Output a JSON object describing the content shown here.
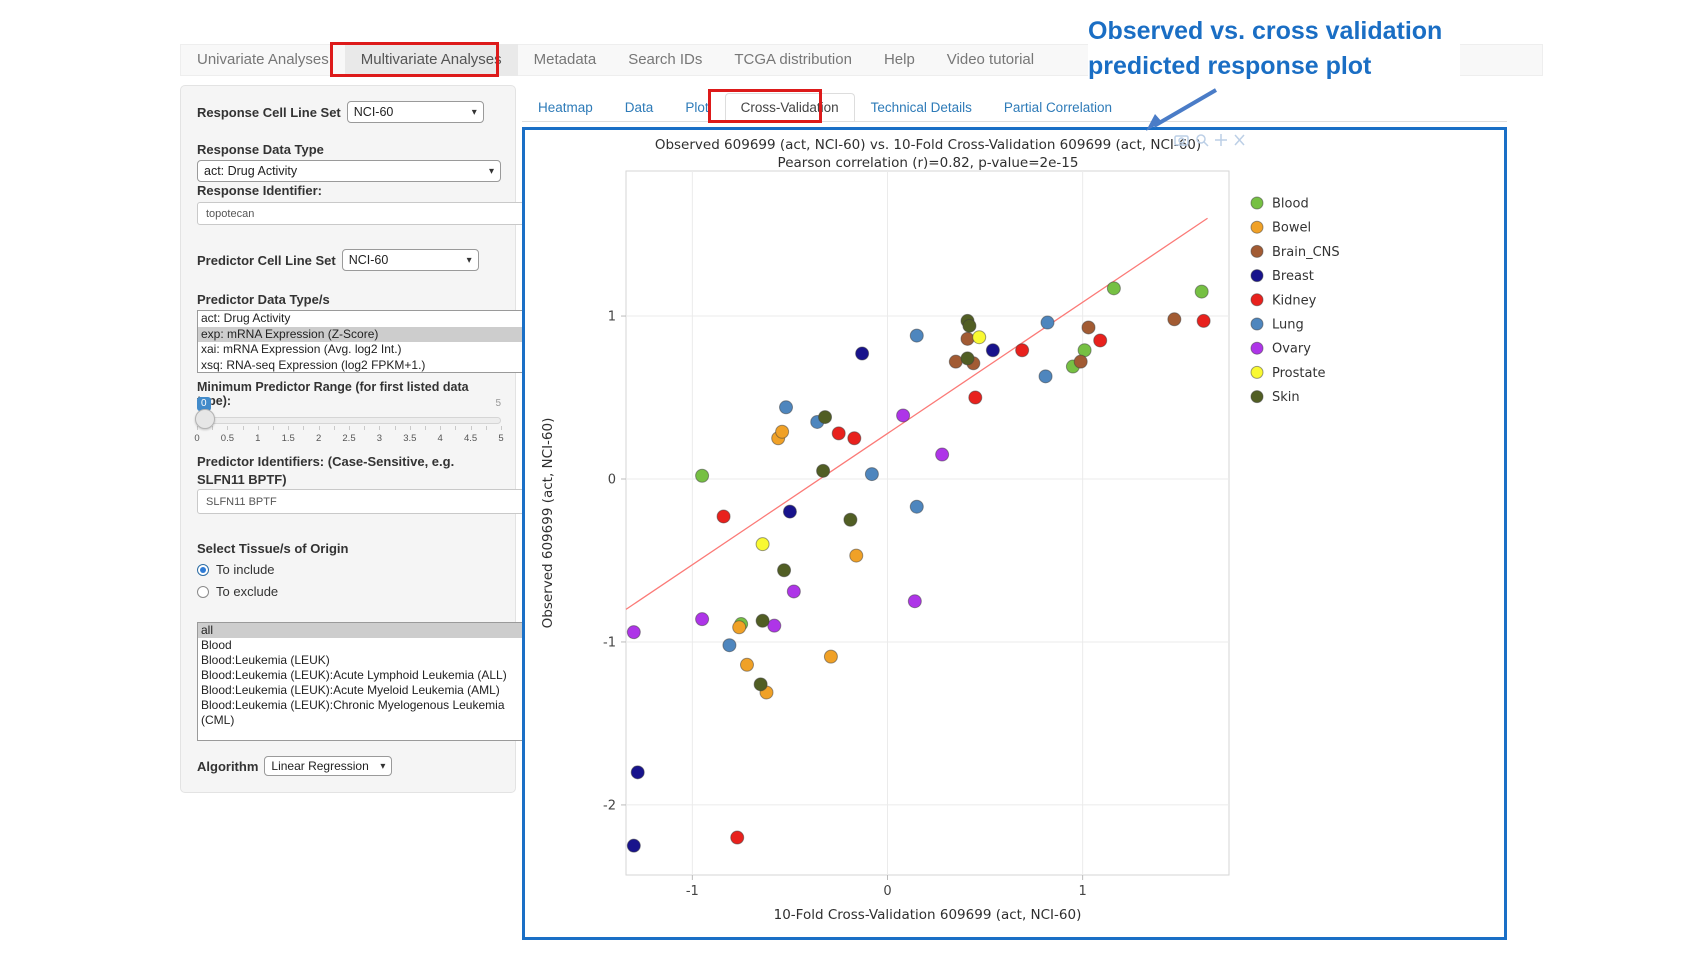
{
  "nav": {
    "items": [
      "Univariate Analyses",
      "Multivariate Analyses",
      "Metadata",
      "Search IDs",
      "TCGA distribution",
      "Help",
      "Video tutorial"
    ],
    "active_index": 1
  },
  "annotation": {
    "line1": "Observed vs. cross validation",
    "line2": "predicted response plot",
    "color": "#1a6ec4"
  },
  "sidebar": {
    "response_cell_line_set": {
      "label": "Response Cell Line Set",
      "value": "NCI-60"
    },
    "response_data_type": {
      "label": "Response Data Type",
      "value": "act: Drug Activity"
    },
    "response_identifier": {
      "label": "Response Identifier:",
      "value": "topotecan"
    },
    "predictor_cell_line_set": {
      "label": "Predictor Cell Line Set",
      "value": "NCI-60"
    },
    "predictor_data_types": {
      "label": "Predictor Data Type/s",
      "options": [
        "act: Drug Activity",
        "exp: mRNA Expression (Z-Score)",
        "xai: mRNA Expression (Avg. log2 Int.)",
        "xsq: RNA-seq Expression (log2 FPKM+1.)"
      ],
      "selected_index": 1
    },
    "min_predictor_range": {
      "label": "Minimum Predictor Range (for first listed data type):",
      "value": "0",
      "max_label": "5",
      "tick_labels": [
        "0",
        "0.5",
        "1",
        "1.5",
        "2",
        "2.5",
        "3",
        "3.5",
        "4",
        "4.5",
        "5"
      ]
    },
    "predictor_identifiers": {
      "label": "Predictor Identifiers: (Case-Sensitive, e.g. SLFN11 BPTF)",
      "value": "SLFN11 BPTF"
    },
    "tissue_origin": {
      "label": "Select Tissue/s of Origin",
      "options": [
        "To include",
        "To exclude"
      ],
      "selected_index": 0
    },
    "tissue_list": {
      "options": [
        "all",
        "Blood",
        "Blood:Leukemia (LEUK)",
        "Blood:Leukemia (LEUK):Acute Lymphoid Leukemia (ALL)",
        "Blood:Leukemia (LEUK):Acute Myeloid Leukemia (AML)",
        "Blood:Leukemia (LEUK):Chronic Myelogenous Leukemia (CML)"
      ],
      "selected_index": 0
    },
    "algorithm": {
      "label": "Algorithm",
      "value": "Linear Regression"
    }
  },
  "tabs": {
    "items": [
      "Heatmap",
      "Data",
      "Plot",
      "Cross-Validation",
      "Technical Details",
      "Partial Correlation"
    ],
    "active_index": 3
  },
  "modebar_icons": [
    "camera",
    "zoom",
    "pan",
    "close"
  ],
  "chart_data": {
    "type": "scatter",
    "title": "Observed 609699 (act, NCI-60) vs. 10-Fold Cross-Validation 609699 (act, NCI-60)",
    "subtitle": "Pearson correlation (r)=0.82, p-value=2e-15",
    "xlabel": "10-Fold Cross-Validation 609699 (act, NCI-60)",
    "ylabel": "Observed 609699 (act, NCI-60)",
    "xlim": [
      -1.34,
      1.75
    ],
    "ylim": [
      -2.43,
      1.89
    ],
    "xticks": [
      -1,
      0,
      1
    ],
    "yticks": [
      -2,
      -1,
      0,
      1
    ],
    "grid": true,
    "legend_position": "right",
    "regression_line": {
      "x": [
        -1.34,
        1.64
      ],
      "y": [
        -0.8,
        1.6
      ],
      "color": "#fb7a77"
    },
    "series": [
      {
        "name": "Blood",
        "color": "#76c043",
        "points": [
          [
            -0.95,
            0.02
          ],
          [
            -0.75,
            -0.89
          ],
          [
            0.95,
            0.69
          ],
          [
            1.01,
            0.79
          ],
          [
            1.16,
            1.17
          ],
          [
            1.61,
            1.15
          ]
        ]
      },
      {
        "name": "Bowel",
        "color": "#f0a127",
        "points": [
          [
            -0.56,
            0.25
          ],
          [
            -0.54,
            0.29
          ],
          [
            -0.16,
            -0.47
          ],
          [
            -0.29,
            -1.09
          ],
          [
            -0.62,
            -1.31
          ],
          [
            -0.72,
            -1.14
          ],
          [
            -0.76,
            -0.91
          ]
        ]
      },
      {
        "name": "Brain_CNS",
        "color": "#a25b33",
        "points": [
          [
            0.35,
            0.72
          ],
          [
            0.41,
            0.86
          ],
          [
            0.44,
            0.71
          ],
          [
            0.99,
            0.72
          ],
          [
            1.03,
            0.93
          ],
          [
            1.47,
            0.98
          ]
        ]
      },
      {
        "name": "Breast",
        "color": "#18138c",
        "points": [
          [
            -0.13,
            0.77
          ],
          [
            0.54,
            0.79
          ],
          [
            -0.5,
            -0.2
          ],
          [
            -1.28,
            -1.8
          ],
          [
            -1.3,
            -2.25
          ]
        ]
      },
      {
        "name": "Kidney",
        "color": "#e8211d",
        "points": [
          [
            -0.25,
            0.28
          ],
          [
            -0.17,
            0.25
          ],
          [
            -0.84,
            -0.23
          ],
          [
            0.45,
            0.5
          ],
          [
            0.69,
            0.79
          ],
          [
            1.09,
            0.85
          ],
          [
            1.62,
            0.97
          ],
          [
            -0.77,
            -2.2
          ]
        ]
      },
      {
        "name": "Lung",
        "color": "#4e86be",
        "points": [
          [
            -0.52,
            0.44
          ],
          [
            -0.36,
            0.35
          ],
          [
            -0.08,
            0.03
          ],
          [
            0.15,
            0.88
          ],
          [
            0.82,
            0.96
          ],
          [
            0.81,
            0.63
          ],
          [
            0.15,
            -0.17
          ],
          [
            -0.81,
            -1.02
          ]
        ]
      },
      {
        "name": "Ovary",
        "color": "#ae35e8",
        "points": [
          [
            0.08,
            0.39
          ],
          [
            0.28,
            0.15
          ],
          [
            -0.48,
            -0.69
          ],
          [
            0.14,
            -0.75
          ],
          [
            -0.95,
            -0.86
          ],
          [
            -0.58,
            -0.9
          ],
          [
            -1.3,
            -0.94
          ]
        ]
      },
      {
        "name": "Prostate",
        "color": "#f9f932",
        "points": [
          [
            0.47,
            0.87
          ],
          [
            -0.64,
            -0.4
          ]
        ]
      },
      {
        "name": "Skin",
        "color": "#515e24",
        "points": [
          [
            0.41,
            0.97
          ],
          [
            0.42,
            0.94
          ],
          [
            0.41,
            0.74
          ],
          [
            -0.32,
            0.38
          ],
          [
            -0.33,
            0.05
          ],
          [
            -0.19,
            -0.25
          ],
          [
            -0.53,
            -0.56
          ],
          [
            -0.64,
            -0.87
          ],
          [
            -0.65,
            -1.26
          ]
        ]
      }
    ]
  }
}
